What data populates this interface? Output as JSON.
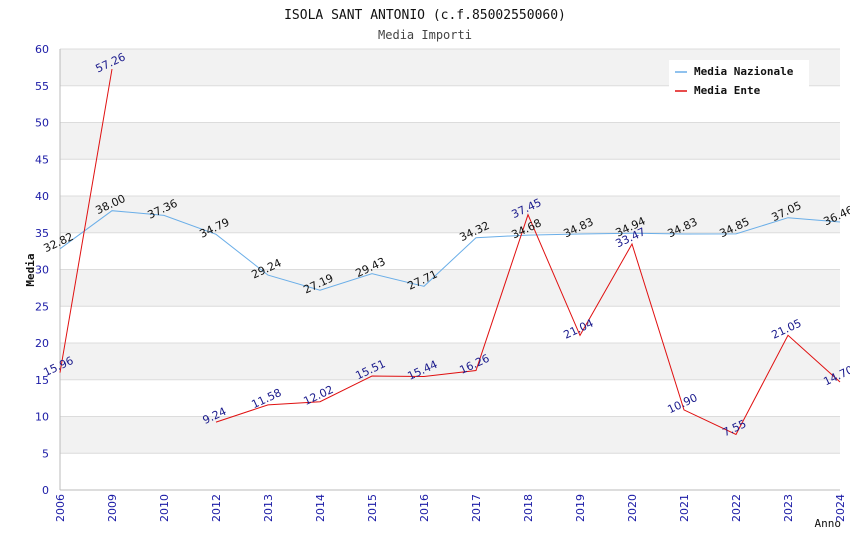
{
  "chart_data": {
    "type": "line",
    "title": "ISOLA SANT ANTONIO (c.f.85002550060)",
    "subtitle": "Media Importi",
    "xlabel": "Anno",
    "ylabel": "Media",
    "ylim": [
      0,
      60
    ],
    "yticks": [
      0,
      5,
      10,
      15,
      20,
      25,
      30,
      35,
      40,
      45,
      50,
      55,
      60
    ],
    "categories": [
      "2006",
      "2009",
      "2010",
      "2012",
      "2013",
      "2014",
      "2015",
      "2016",
      "2017",
      "2018",
      "2019",
      "2020",
      "2021",
      "2022",
      "2023",
      "2024"
    ],
    "grid": "horizontal bands",
    "legend_position": "top-right",
    "series": [
      {
        "name": "Media Nazionale",
        "color": "#6aaee8",
        "values": [
          32.82,
          38.0,
          37.36,
          34.79,
          29.24,
          27.19,
          29.43,
          27.71,
          34.32,
          34.68,
          34.83,
          34.94,
          34.83,
          34.85,
          37.05,
          36.46
        ],
        "labels": [
          "32.82",
          "38.00",
          "37.36",
          "34.79",
          "29.24",
          "27.19",
          "29.43",
          "27.71",
          "34.32",
          "34.68",
          "34.83",
          "34.94",
          "34.83",
          "34.85",
          "37.05",
          "36.46"
        ]
      },
      {
        "name": "Media Ente",
        "color": "#e01010",
        "values": [
          15.96,
          57.26,
          null,
          9.24,
          11.58,
          12.02,
          15.51,
          15.44,
          16.26,
          37.45,
          21.04,
          33.47,
          10.9,
          7.55,
          21.05,
          14.7
        ],
        "labels": [
          "15.96",
          "57.26",
          "",
          "9.24",
          "11.58",
          "12.02",
          "15.51",
          "15.44",
          "16.26",
          "37.45",
          "21.04",
          "33.47",
          "10.90",
          "7.55",
          "21.05",
          "14.70"
        ]
      }
    ]
  }
}
